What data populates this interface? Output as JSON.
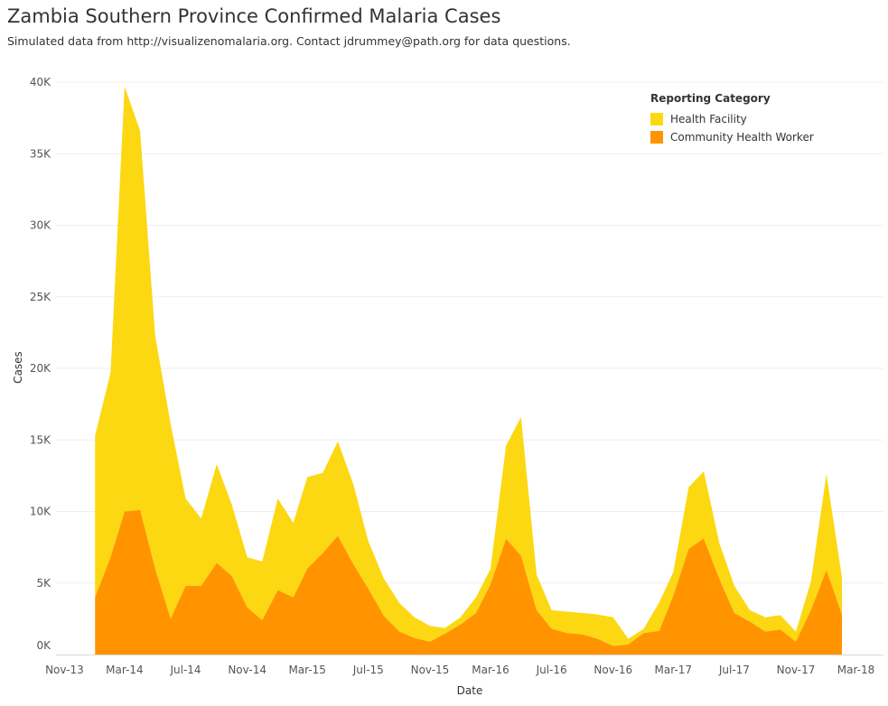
{
  "header": {
    "title": "Zambia Southern Province Confirmed Malaria Cases",
    "subtitle": "Simulated data from http://visualizenomalaria.org. Contact jdrummey@path.org for data questions."
  },
  "legend": {
    "title": "Reporting Category",
    "items": [
      {
        "label": "Health Facility",
        "color": "#fcd812"
      },
      {
        "label": "Community Health Worker",
        "color": "#ff9400"
      }
    ]
  },
  "chart_data": {
    "type": "area",
    "stacked": true,
    "xlabel": "Date",
    "ylabel": "Cases",
    "ylim": [
      0,
      40000
    ],
    "y_ticks": [
      {
        "value": 0,
        "label": "0K"
      },
      {
        "value": 5000,
        "label": "5K"
      },
      {
        "value": 10000,
        "label": "10K"
      },
      {
        "value": 15000,
        "label": "15K"
      },
      {
        "value": 20000,
        "label": "20K"
      },
      {
        "value": 25000,
        "label": "25K"
      },
      {
        "value": 30000,
        "label": "30K"
      },
      {
        "value": 35000,
        "label": "35K"
      },
      {
        "value": 40000,
        "label": "40K"
      }
    ],
    "xlim": [
      "2013-10-15",
      "2018-04-25"
    ],
    "x_ticks": [
      {
        "value": "2013-11-01",
        "label": "Nov-13"
      },
      {
        "value": "2014-03-01",
        "label": "Mar-14"
      },
      {
        "value": "2014-07-01",
        "label": "Jul-14"
      },
      {
        "value": "2014-11-01",
        "label": "Nov-14"
      },
      {
        "value": "2015-03-01",
        "label": "Mar-15"
      },
      {
        "value": "2015-07-01",
        "label": "Jul-15"
      },
      {
        "value": "2015-11-01",
        "label": "Nov-15"
      },
      {
        "value": "2016-03-01",
        "label": "Mar-16"
      },
      {
        "value": "2016-07-01",
        "label": "Jul-16"
      },
      {
        "value": "2016-11-01",
        "label": "Nov-16"
      },
      {
        "value": "2017-03-01",
        "label": "Mar-17"
      },
      {
        "value": "2017-07-01",
        "label": "Jul-17"
      },
      {
        "value": "2017-11-01",
        "label": "Nov-17"
      },
      {
        "value": "2018-03-01",
        "label": "Mar-18"
      }
    ],
    "x": [
      "2014-01-01",
      "2014-02-01",
      "2014-03-01",
      "2014-04-01",
      "2014-05-01",
      "2014-06-01",
      "2014-07-01",
      "2014-08-01",
      "2014-09-01",
      "2014-10-01",
      "2014-11-01",
      "2014-12-01",
      "2015-01-01",
      "2015-02-01",
      "2015-03-01",
      "2015-04-01",
      "2015-05-01",
      "2015-06-01",
      "2015-07-01",
      "2015-08-01",
      "2015-09-01",
      "2015-10-01",
      "2015-11-01",
      "2015-12-01",
      "2016-01-01",
      "2016-02-01",
      "2016-03-01",
      "2016-04-01",
      "2016-05-01",
      "2016-06-01",
      "2016-07-01",
      "2016-08-01",
      "2016-09-01",
      "2016-10-01",
      "2016-11-01",
      "2016-12-01",
      "2017-01-01",
      "2017-02-01",
      "2017-03-01",
      "2017-04-01",
      "2017-05-01",
      "2017-06-01",
      "2017-07-01",
      "2017-08-01",
      "2017-09-01",
      "2017-10-01",
      "2017-11-01",
      "2017-12-01",
      "2018-01-01",
      "2018-02-01"
    ],
    "series": [
      {
        "name": "Community Health Worker",
        "color": "#ff9400",
        "values": [
          4000,
          6800,
          10000,
          10100,
          6000,
          2500,
          4800,
          4800,
          6400,
          5500,
          3300,
          2400,
          4500,
          4000,
          6000,
          7100,
          8300,
          6300,
          4600,
          2700,
          1600,
          1150,
          900,
          1450,
          2100,
          2900,
          4900,
          8100,
          6900,
          3100,
          1800,
          1500,
          1400,
          1100,
          600,
          700,
          1500,
          1650,
          4100,
          7400,
          8100,
          5300,
          2900,
          2300,
          1600,
          1750,
          900,
          3100,
          5900,
          2800
        ]
      },
      {
        "name": "Health Facility",
        "color": "#fcd812",
        "values": [
          11300,
          12900,
          29700,
          26500,
          16300,
          13600,
          6100,
          4700,
          6900,
          5000,
          3500,
          4100,
          6400,
          5200,
          6400,
          5600,
          6600,
          5600,
          3300,
          2600,
          2000,
          1450,
          1100,
          400,
          500,
          1100,
          1100,
          6500,
          9700,
          2500,
          1300,
          1500,
          1500,
          1700,
          2000,
          400,
          300,
          2000,
          1650,
          4300,
          4700,
          2500,
          1900,
          800,
          1000,
          1000,
          700,
          2000,
          6700,
          2600
        ]
      }
    ]
  }
}
